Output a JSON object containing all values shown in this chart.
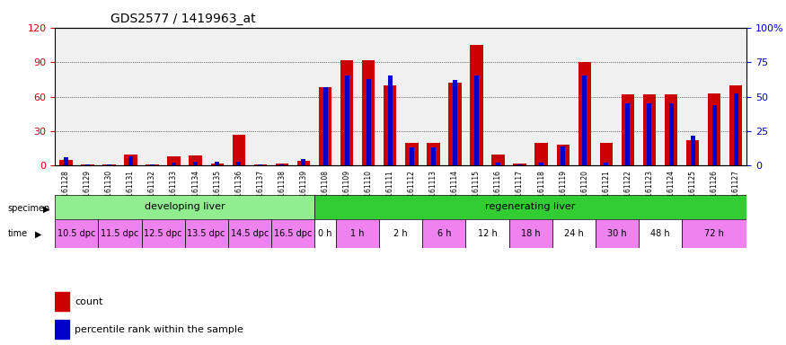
{
  "title": "GDS2577 / 1419963_at",
  "samples": [
    "GSM161128",
    "GSM161129",
    "GSM161130",
    "GSM161131",
    "GSM161132",
    "GSM161133",
    "GSM161134",
    "GSM161135",
    "GSM161136",
    "GSM161137",
    "GSM161138",
    "GSM161139",
    "GSM161108",
    "GSM161109",
    "GSM161110",
    "GSM161111",
    "GSM161112",
    "GSM161113",
    "GSM161114",
    "GSM161115",
    "GSM161116",
    "GSM161117",
    "GSM161118",
    "GSM161119",
    "GSM161120",
    "GSM161121",
    "GSM161122",
    "GSM161123",
    "GSM161124",
    "GSM161125",
    "GSM161126",
    "GSM161127"
  ],
  "count": [
    5,
    1,
    1,
    10,
    1,
    8,
    9,
    2,
    27,
    1,
    2,
    4,
    68,
    92,
    92,
    70,
    20,
    20,
    72,
    105,
    10,
    2,
    20,
    18,
    90,
    20,
    62,
    62,
    62,
    22,
    63,
    70
  ],
  "percentile": [
    6,
    1,
    1,
    7,
    1,
    2,
    3,
    3,
    3,
    1,
    1,
    5,
    57,
    65,
    63,
    65,
    13,
    13,
    62,
    65,
    2,
    1,
    2,
    14,
    65,
    2,
    45,
    45,
    45,
    22,
    44,
    52
  ],
  "ylim_left": [
    0,
    120
  ],
  "ylim_right": [
    0,
    100
  ],
  "yticks_left": [
    0,
    30,
    60,
    90,
    120
  ],
  "yticks_right": [
    0,
    25,
    50,
    75,
    100
  ],
  "ytick_labels_right": [
    "0",
    "25",
    "50",
    "75",
    "100%"
  ],
  "color_red": "#cc0000",
  "color_blue": "#0000cc",
  "bg_color": "#f0f0f0",
  "specimen_groups": [
    {
      "label": "developing liver",
      "start": 0,
      "end": 12,
      "color": "#90ee90"
    },
    {
      "label": "regenerating liver",
      "start": 12,
      "end": 32,
      "color": "#32cd32"
    }
  ],
  "time_groups": [
    {
      "label": "10.5 dpc",
      "start": 0,
      "end": 2,
      "color": "#ee82ee"
    },
    {
      "label": "11.5 dpc",
      "start": 2,
      "end": 4,
      "color": "#ee82ee"
    },
    {
      "label": "12.5 dpc",
      "start": 4,
      "end": 6,
      "color": "#ee82ee"
    },
    {
      "label": "13.5 dpc",
      "start": 6,
      "end": 8,
      "color": "#ee82ee"
    },
    {
      "label": "14.5 dpc",
      "start": 8,
      "end": 10,
      "color": "#ee82ee"
    },
    {
      "label": "16.5 dpc",
      "start": 10,
      "end": 12,
      "color": "#ee82ee"
    },
    {
      "label": "0 h",
      "start": 12,
      "end": 13,
      "color": "#ffffff"
    },
    {
      "label": "1 h",
      "start": 13,
      "end": 15,
      "color": "#ee82ee"
    },
    {
      "label": "2 h",
      "start": 15,
      "end": 17,
      "color": "#ffffff"
    },
    {
      "label": "6 h",
      "start": 17,
      "end": 19,
      "color": "#ee82ee"
    },
    {
      "label": "12 h",
      "start": 19,
      "end": 21,
      "color": "#ffffff"
    },
    {
      "label": "18 h",
      "start": 21,
      "end": 23,
      "color": "#ee82ee"
    },
    {
      "label": "24 h",
      "start": 23,
      "end": 25,
      "color": "#ffffff"
    },
    {
      "label": "30 h",
      "start": 25,
      "end": 27,
      "color": "#ee82ee"
    },
    {
      "label": "48 h",
      "start": 27,
      "end": 29,
      "color": "#ffffff"
    },
    {
      "label": "72 h",
      "start": 29,
      "end": 32,
      "color": "#ee82ee"
    }
  ]
}
